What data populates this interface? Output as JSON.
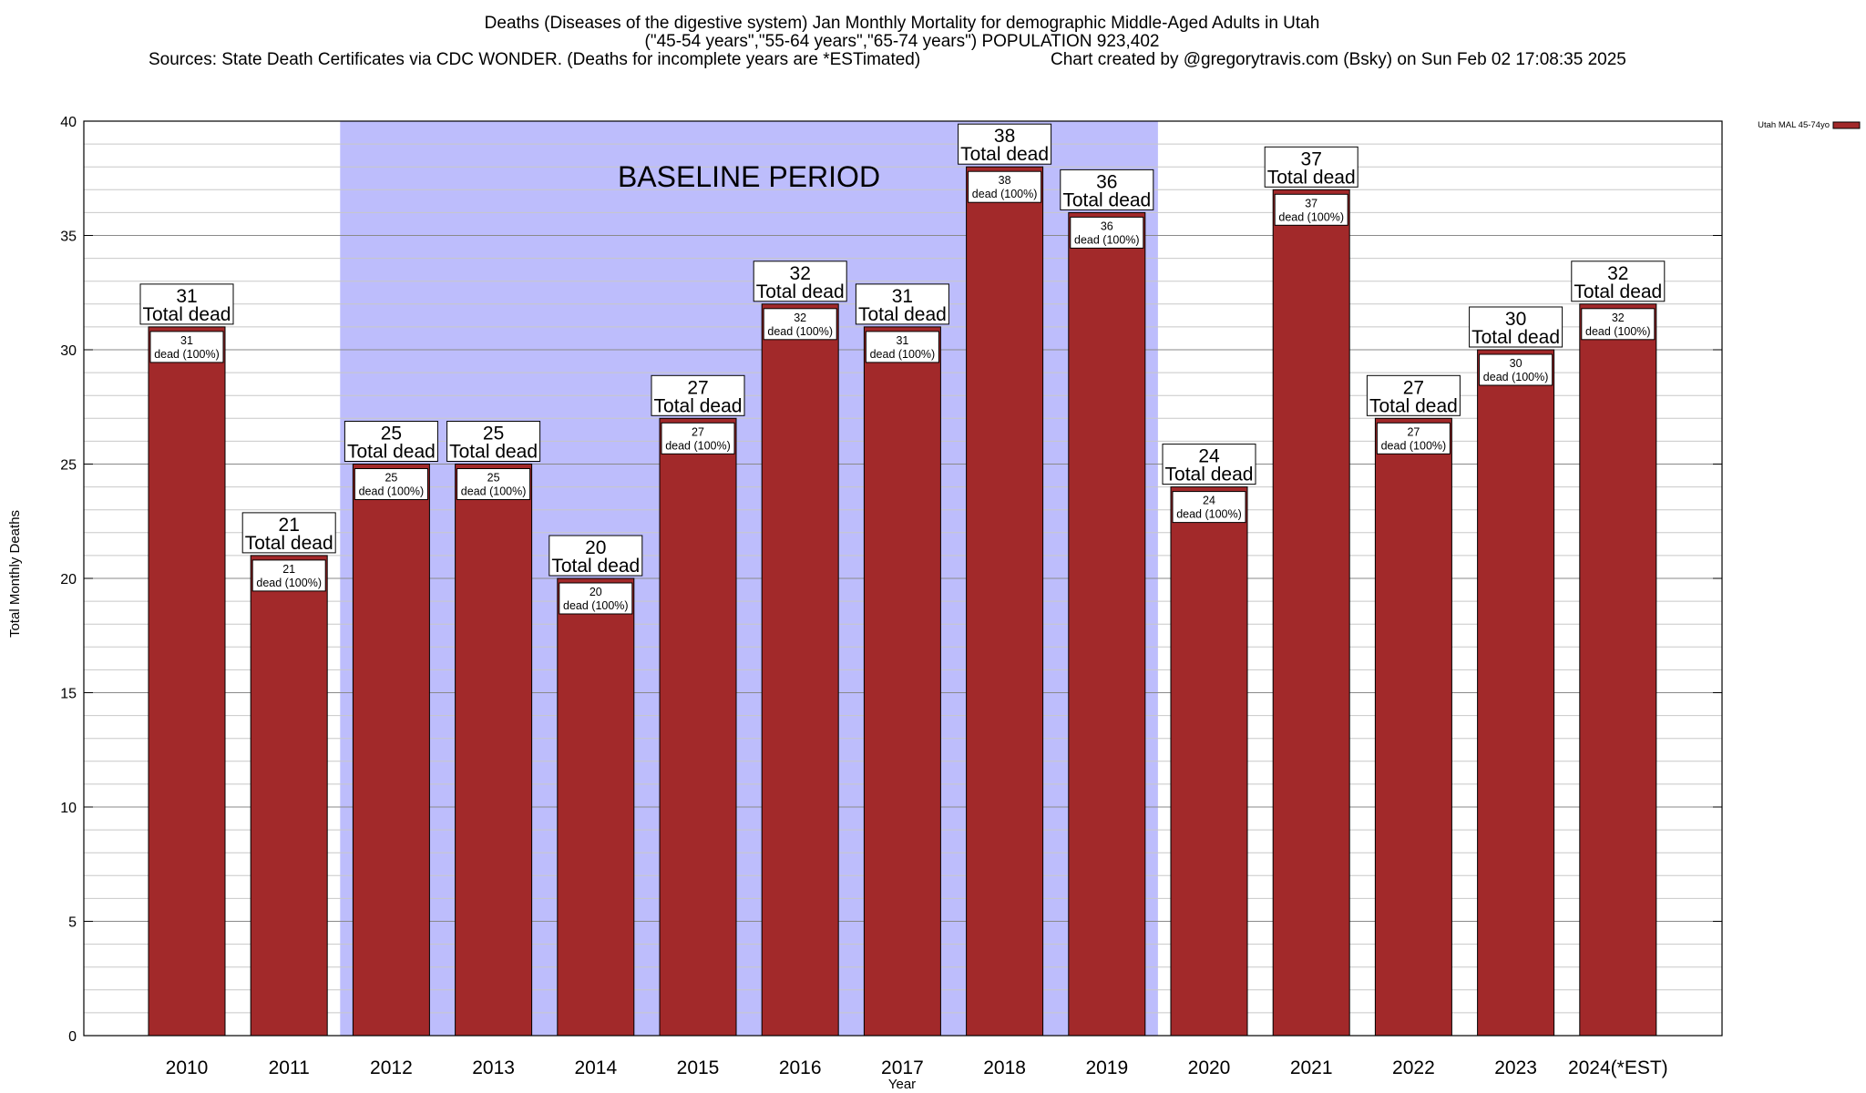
{
  "title": {
    "line1": "Deaths (Diseases of the digestive system) Jan Monthly Mortality for demographic Middle-Aged Adults in Utah",
    "line2": "(\"45-54 years\",\"55-64 years\",\"65-74 years\") POPULATION 923,402",
    "line3_left": "Sources: State Death Certificates via CDC WONDER. (Deaths for incomplete years are *ESTimated)",
    "line3_right": "Chart created by @gregorytravis.com (Bsky) on Sun Feb 02 17:08:35 2025"
  },
  "chart_data": {
    "type": "bar",
    "xlabel": "Year",
    "ylabel": "Total Monthly Deaths",
    "ylim": [
      0,
      40
    ],
    "yticks": [
      0,
      5,
      10,
      15,
      20,
      25,
      30,
      35,
      40
    ],
    "grid": true,
    "categories": [
      "2010",
      "2011",
      "2012",
      "2013",
      "2014",
      "2015",
      "2016",
      "2017",
      "2018",
      "2019",
      "2020",
      "2021",
      "2022",
      "2023",
      "2024(*EST)"
    ],
    "series": [
      {
        "name": "Utah MAL 45-74yo",
        "values": [
          31,
          21,
          25,
          25,
          20,
          27,
          32,
          31,
          38,
          36,
          24,
          37,
          27,
          30,
          32
        ]
      }
    ],
    "bar_label_suffix": "Total dead",
    "bar_inner_label_suffix": "dead (100%)",
    "baseline_period": {
      "label": "BASELINE PERIOD",
      "from": "2012",
      "to": "2019"
    },
    "legend": {
      "position": "top-right",
      "entry": "Utah MAL 45-74yo"
    },
    "colors": {
      "bar": "#a2292a",
      "baseline_band": "#bdbdfc",
      "grid": "#c8c8c8"
    }
  }
}
